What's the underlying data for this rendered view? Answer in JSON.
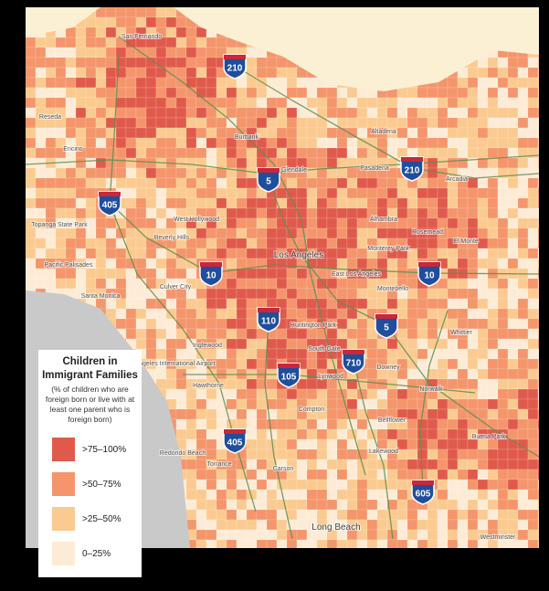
{
  "legend": {
    "title": "Children in Immigrant Families",
    "subtitle": "(% of children who are foreign born or live with at least one parent who is foreign born)",
    "items": [
      {
        "label": ">75–100%",
        "color": "#e05a4b"
      },
      {
        "label": ">50–75%",
        "color": "#f4956b"
      },
      {
        "label": ">25–50%",
        "color": "#fbca90"
      },
      {
        "label": "0–25%",
        "color": "#fdebd6"
      }
    ]
  },
  "highways": [
    "210",
    "5",
    "405",
    "210",
    "10",
    "10",
    "110",
    "5",
    "710",
    "105",
    "405",
    "605"
  ],
  "places": [
    "San Fernando",
    "Reseda",
    "Encino",
    "Burbank",
    "Glendale",
    "Altadena",
    "Pasadena",
    "Arcadia",
    "Alhambra",
    "Rosemead",
    "El Monte",
    "Topanga State Park",
    "West Hollywood",
    "Beverly Hills",
    "Los Angeles",
    "Pacific Palisades",
    "Santa Monica",
    "Culver City",
    "Monterey Park",
    "East Los Angeles",
    "Montebello",
    "Huntington Park",
    "Whittier",
    "Inglewood",
    "Los Angeles International Airport",
    "South Gate",
    "Downey",
    "Hawthorne",
    "Lynwood",
    "Norwalk",
    "Compton",
    "Bellflower",
    "Lakewood",
    "Buena Park",
    "Redondo Beach",
    "Torrance",
    "Carson",
    "Long Beach",
    "Westminster"
  ]
}
